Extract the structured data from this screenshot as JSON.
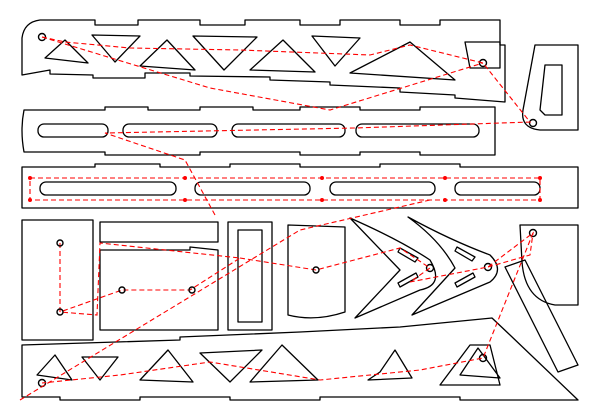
{
  "colors": {
    "background": "#ffffff",
    "cut_outline": "#000000",
    "travel_path": "#ff0000"
  }
}
